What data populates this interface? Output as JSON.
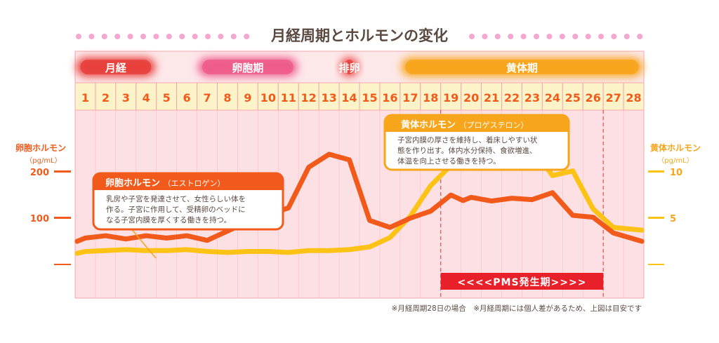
{
  "title": "月経周期とホルモンの変化",
  "phases": [
    {
      "label": "月経",
      "start": 1,
      "end": 4,
      "color": "#e8413c"
    },
    {
      "label": "卵胞期",
      "start": 7,
      "end": 11,
      "color": "#ee5d8a"
    },
    {
      "label": "排卵",
      "start": 14,
      "end": 14,
      "color": "#e8413c"
    },
    {
      "label": "黄体期",
      "start": 17,
      "end": 28,
      "color": "#f7a51b"
    }
  ],
  "colors": {
    "estrogen": "#f25a1c",
    "progesterone": "#fcc316",
    "title_text": "#5a4a42",
    "dots": "#f4a7cf",
    "chart_bg": "#fde0e3",
    "grid": "#f2a7ad",
    "pms": "#e8202a"
  },
  "chart_data": {
    "type": "line",
    "x": [
      1,
      2,
      3,
      4,
      5,
      6,
      7,
      8,
      9,
      10,
      11,
      12,
      13,
      14,
      15,
      16,
      17,
      18,
      19,
      20,
      21,
      22,
      23,
      24,
      25,
      26,
      27,
      28
    ],
    "xlim": [
      0.5,
      28.5
    ],
    "left_axis": {
      "label": "卵胞ホルモン",
      "unit": "（pg/mL）",
      "ticks": [
        100,
        200
      ],
      "ylim": [
        0,
        300
      ]
    },
    "right_axis": {
      "label": "黄体ホルモン",
      "unit": "（pg/mL）",
      "ticks": [
        5,
        10
      ],
      "ylim": [
        0,
        15
      ]
    },
    "series": [
      {
        "name": "卵胞ホルモン",
        "axis": "left",
        "color": "#f25a1c",
        "x": [
          0.6,
          1,
          2,
          3,
          4,
          5,
          6,
          7,
          8,
          9,
          10,
          11,
          12,
          13,
          14,
          15,
          16,
          17,
          18,
          19,
          19.6,
          20,
          21,
          22,
          23,
          24,
          25,
          26,
          27,
          28.4
        ],
        "y": [
          50,
          57,
          62,
          55,
          62,
          57,
          62,
          52,
          72,
          92,
          108,
          122,
          210,
          238,
          226,
          95,
          80,
          100,
          115,
          150,
          138,
          145,
          137,
          143,
          140,
          155,
          106,
          102,
          68,
          50
        ]
      },
      {
        "name": "黄体ホルモン",
        "axis": "right",
        "color": "#fcc316",
        "x": [
          0.6,
          1,
          2,
          3,
          4,
          5,
          6,
          7,
          8,
          9,
          10,
          11,
          12,
          13,
          14,
          15,
          16,
          17,
          18,
          19,
          20,
          21,
          22,
          23,
          24,
          25,
          26,
          27,
          28.4
        ],
        "y": [
          1.2,
          1.4,
          1.5,
          1.6,
          1.5,
          1.5,
          1.6,
          1.4,
          1.3,
          1.4,
          1.4,
          1.3,
          1.5,
          1.5,
          1.6,
          1.9,
          2.9,
          5.2,
          8.5,
          10.7,
          10.9,
          13.2,
          12.2,
          12.6,
          9.6,
          10.1,
          6.0,
          4.0,
          3.7
        ]
      }
    ]
  },
  "estrogen_box": {
    "title": "卵胞ホルモン",
    "subtitle": "（エストロゲン）",
    "lines": [
      "乳房や子宮を発達させて、女性らしい体を",
      "作る。子宮に作用して、受精卵のベッドに",
      "なる子宮内膜を厚くする働きを持つ。"
    ]
  },
  "progesterone_box": {
    "title": "黄体ホルモン",
    "subtitle": "（プロゲステロン）",
    "lines": [
      "子宮内膜の厚さを維持し、着床しやすい状",
      "態を作り出す。体内水分保持、食欲増進、",
      "体温を向上させる働きを持つ。"
    ]
  },
  "pms": {
    "label": "<<<<PMS発生期>>>>",
    "start": 18.5,
    "end": 26.5
  },
  "footnote": "※月経周期28日の場合　※月経周期には個人差があるため、上図は目安です"
}
